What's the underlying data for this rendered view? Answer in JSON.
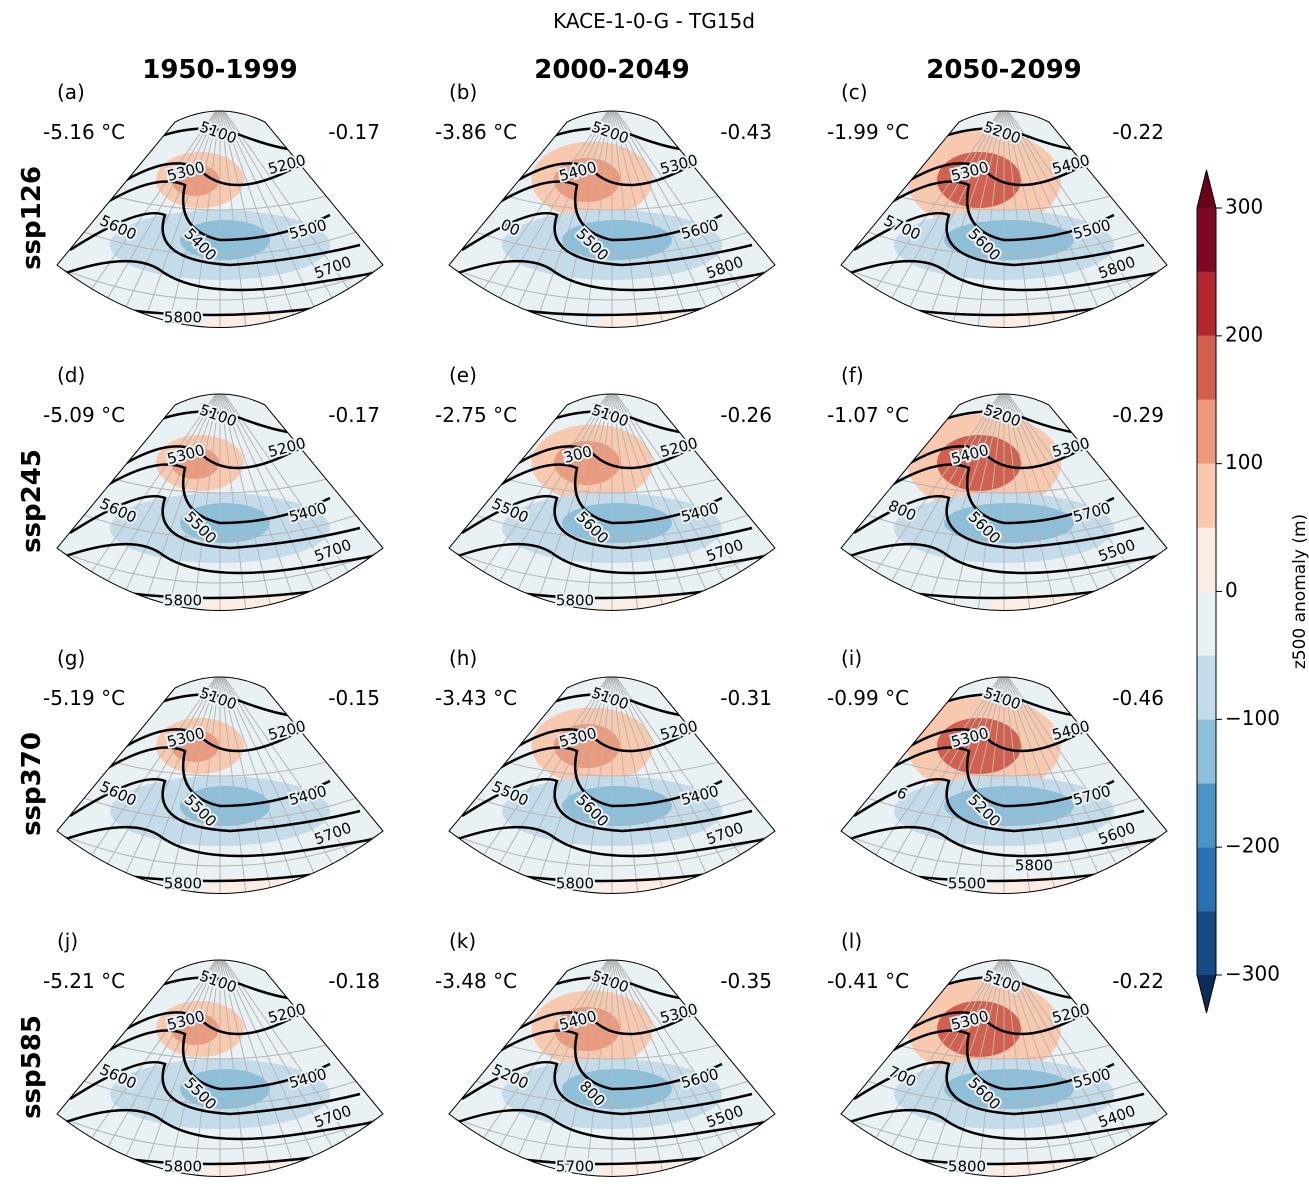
{
  "chart_data": {
    "type": "map",
    "title": "KACE-1-0-G - TG15d",
    "columns": [
      "1950-1999",
      "2000-2049",
      "2050-2099"
    ],
    "rows": [
      "ssp126",
      "ssp245",
      "ssp370",
      "ssp585"
    ],
    "panels": [
      {
        "label": "(a)",
        "temperature": "-5.16 °C",
        "correlation": "-0.17",
        "contour_labels": [
          "5100",
          "5300",
          "5200",
          "5600",
          "5400",
          "5500",
          "5700",
          "5800"
        ]
      },
      {
        "label": "(b)",
        "temperature": "-3.86 °C",
        "correlation": "-0.43",
        "contour_labels": [
          "5200",
          "5400",
          "5300",
          "00",
          "5500",
          "5600",
          "5800"
        ]
      },
      {
        "label": "(c)",
        "temperature": "-1.99 °C",
        "correlation": "-0.22",
        "contour_labels": [
          "5200",
          "5300",
          "5400",
          "5700",
          "5600",
          "5500",
          "5800"
        ]
      },
      {
        "label": "(d)",
        "temperature": "-5.09 °C",
        "correlation": "-0.17",
        "contour_labels": [
          "5100",
          "5300",
          "5200",
          "5600",
          "5500",
          "5400",
          "5700",
          "5800"
        ]
      },
      {
        "label": "(e)",
        "temperature": "-2.75 °C",
        "correlation": "-0.26",
        "contour_labels": [
          "5100",
          "300",
          "5200",
          "5500",
          "5600",
          "5400",
          "5700",
          "5800"
        ]
      },
      {
        "label": "(f)",
        "temperature": "-1.07 °C",
        "correlation": "-0.29",
        "contour_labels": [
          "5200",
          "5400",
          "5300",
          "800",
          "5600",
          "5700",
          "5500"
        ]
      },
      {
        "label": "(g)",
        "temperature": "-5.19 °C",
        "correlation": "-0.15",
        "contour_labels": [
          "5100",
          "5300",
          "5200",
          "5600",
          "5500",
          "5400",
          "5700",
          "5800"
        ]
      },
      {
        "label": "(h)",
        "temperature": "-3.43 °C",
        "correlation": "-0.31",
        "contour_labels": [
          "5100",
          "5300",
          "5200",
          "5500",
          "5600",
          "5400",
          "5700",
          "5800"
        ]
      },
      {
        "label": "(i)",
        "temperature": "-0.99 °C",
        "correlation": "-0.46",
        "contour_labels": [
          "5100",
          "5300",
          "5400",
          "6",
          "5200",
          "5700",
          "5600",
          "5500",
          "5800"
        ]
      },
      {
        "label": "(j)",
        "temperature": "-5.21 °C",
        "correlation": "-0.18",
        "contour_labels": [
          "5100",
          "5300",
          "5200",
          "5600",
          "5500",
          "5400",
          "5700",
          "5800"
        ]
      },
      {
        "label": "(k)",
        "temperature": "-3.48 °C",
        "correlation": "-0.35",
        "contour_labels": [
          "5100",
          "5400",
          "5300",
          "5200",
          "800",
          "5600",
          "5500",
          "5700"
        ]
      },
      {
        "label": "(l)",
        "temperature": "-0.41 °C",
        "correlation": "-0.22",
        "contour_labels": [
          "5100",
          "5300",
          "5200",
          "700",
          "5600",
          "5500",
          "5400",
          "5800"
        ]
      }
    ],
    "colorbar": {
      "label": "z500 anomaly (m)",
      "ylim": [
        -300,
        300
      ],
      "levels": [
        -300,
        -250,
        -200,
        -150,
        -100,
        -50,
        0,
        50,
        100,
        150,
        200,
        250,
        300
      ],
      "colors": [
        "#174a82",
        "#2a70b0",
        "#4b94c4",
        "#8cbfda",
        "#c4dcea",
        "#e9f1f5",
        "#fbece4",
        "#f8c9ae",
        "#ec9a7b",
        "#d2604f",
        "#b3262f",
        "#7c0823"
      ],
      "extend_colors": [
        "#0c2d59",
        "#6b0019"
      ],
      "yticks": [
        {
          "value": -300,
          "label": "−300"
        },
        {
          "value": -200,
          "label": "−200"
        },
        {
          "value": -100,
          "label": "−100"
        },
        0,
        100,
        200,
        300
      ]
    }
  }
}
